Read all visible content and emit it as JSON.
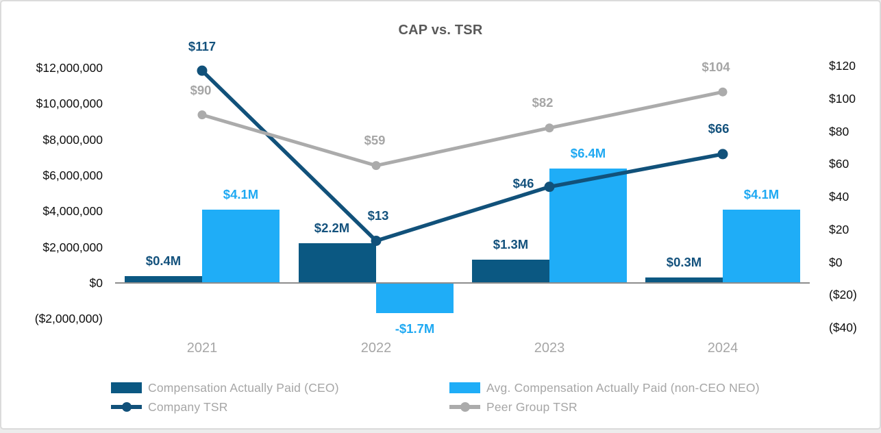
{
  "title_bar": {
    "title": "CAP vs. TSR"
  },
  "colors": {
    "ceo_bar": "#0B5882",
    "neo_bar": "#1FADF7",
    "company_line": "#11517A",
    "peer_line": "#ABABAB",
    "ceo_label": "#14527D",
    "neo_label": "#1FA9F2",
    "company_label": "#14527D",
    "peer_label": "#A6A6A6",
    "axis_text": "#0D0D0D",
    "muted_text": "#A6A6A6",
    "title_text": "#595959",
    "axis_line": "#8C8C8C"
  },
  "chart_data": {
    "type": "bar+line combo (dual axis)",
    "title": "CAP vs. TSR",
    "categories": [
      "2021",
      "2022",
      "2023",
      "2024"
    ],
    "series": [
      {
        "name": "Compensation Actually Paid (CEO)",
        "type": "bar",
        "axis": "left",
        "values": [
          400000,
          2200000,
          1300000,
          300000
        ],
        "data_labels": [
          "$0.4M",
          "$2.2M",
          "$1.3M",
          "$0.3M"
        ],
        "label_dx": [
          0,
          -8,
          0,
          0
        ]
      },
      {
        "name": "Avg. Compensation Actually Paid (non-CEO NEO)",
        "type": "bar",
        "axis": "left",
        "values": [
          4100000,
          -1700000,
          6400000,
          4100000
        ],
        "data_labels": [
          "$4.1M",
          "-$1.7M",
          "$6.4M",
          "$4.1M"
        ],
        "label_dx": [
          0,
          0,
          0,
          0
        ]
      },
      {
        "name": "Company TSR",
        "type": "line",
        "axis": "right",
        "values": [
          117,
          13,
          46,
          66
        ],
        "data_labels": [
          "$117",
          "$13",
          "$46",
          "$66"
        ],
        "label_offsets": [
          [
            0,
            -35
          ],
          [
            3,
            -36
          ],
          [
            -38,
            -5
          ],
          [
            -6,
            -37
          ]
        ]
      },
      {
        "name": "Peer Group TSR",
        "type": "line",
        "axis": "right",
        "values": [
          90,
          59,
          82,
          104
        ],
        "data_labels": [
          "$90",
          "$59",
          "$82",
          "$104"
        ],
        "label_offsets": [
          [
            -2,
            -36
          ],
          [
            -2,
            -37
          ],
          [
            -10,
            -37
          ],
          [
            -10,
            -36
          ]
        ]
      }
    ],
    "left_axis": {
      "ticks": [
        "$12,000,000",
        "$10,000,000",
        "$8,000,000",
        "$6,000,000",
        "$4,000,000",
        "$2,000,000",
        "$0",
        "($2,000,000)"
      ],
      "tick_values": [
        12000000,
        10000000,
        8000000,
        6000000,
        4000000,
        2000000,
        0,
        -2000000
      ],
      "range": [
        -2000000,
        12000000
      ],
      "grid": false
    },
    "right_axis": {
      "ticks": [
        "$120",
        "$100",
        "$80",
        "$60",
        "$40",
        "$20",
        "$0",
        "($20)",
        "($40)"
      ],
      "tick_values": [
        120,
        100,
        80,
        60,
        40,
        20,
        0,
        -20,
        -40
      ],
      "range": [
        -40,
        120
      ],
      "grid": false
    },
    "legend_position": "bottom, two columns"
  },
  "legend": {
    "items": [
      {
        "label": "Compensation Actually Paid (CEO)",
        "marker": "bar-swatch"
      },
      {
        "label": "Company TSR",
        "marker": "line-dot-swatch"
      },
      {
        "label": "Avg. Compensation Actually Paid (non-CEO NEO)",
        "marker": "bar-swatch"
      },
      {
        "label": "Peer Group TSR",
        "marker": "line-dot-swatch"
      }
    ]
  }
}
